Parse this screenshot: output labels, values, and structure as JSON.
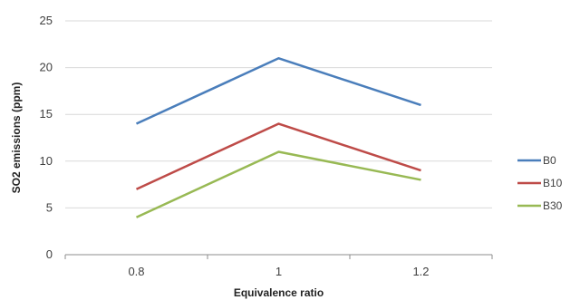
{
  "chart_data": {
    "type": "line",
    "title": "",
    "xlabel": "Equivalence ratio",
    "ylabel": "SO2 emissions (ppm)",
    "categories": [
      "0.8",
      "1",
      "1.2"
    ],
    "ylim": [
      0,
      25
    ],
    "yticks": [
      "0",
      "5",
      "10",
      "15",
      "20",
      "25"
    ],
    "grid": true,
    "legend_position": "right",
    "series": [
      {
        "name": "B0",
        "values": [
          14,
          21,
          16
        ],
        "color": "#4a7ebb"
      },
      {
        "name": "B10",
        "values": [
          7,
          14,
          9
        ],
        "color": "#be4b48"
      },
      {
        "name": "B30",
        "values": [
          4,
          11,
          8
        ],
        "color": "#98b954"
      }
    ]
  }
}
